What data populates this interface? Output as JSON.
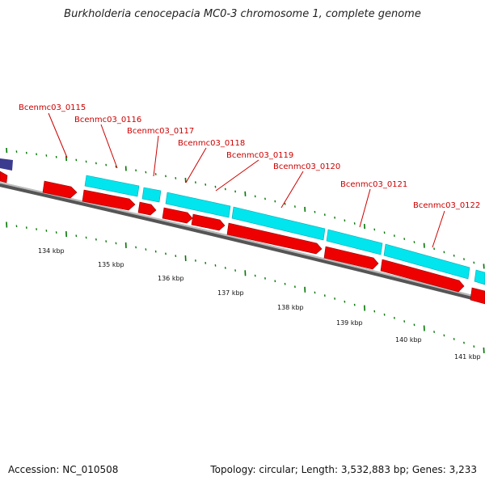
{
  "title": "Burkholderia cenocepacia MC0-3 chromosome 1, complete genome",
  "footer": {
    "accession": "Accession: NC_010508",
    "summary": "Topology: circular; Length: 3,532,883 bp; Genes: 3,233"
  },
  "colors": {
    "cds_forward": "#00e5ee",
    "cds_reverse": "#ee0000",
    "other_feature": "#3b3b8f",
    "backbone": "#808080",
    "tick": "#007700",
    "label": "#cc0000"
  },
  "gene_labels": [
    "Bcenmc03_0115",
    "Bcenmc03_0116",
    "Bcenmc03_0117",
    "Bcenmc03_0118",
    "Bcenmc03_0119",
    "Bcenmc03_0120",
    "Bcenmc03_0121",
    "Bcenmc03_0122"
  ],
  "scale_labels": [
    "134 kbp",
    "135 kbp",
    "136 kbp",
    "137 kbp",
    "138 kbp",
    "139 kbp",
    "140 kbp",
    "141 kbp"
  ]
}
